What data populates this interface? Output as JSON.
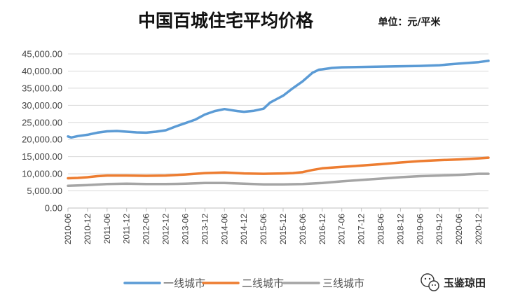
{
  "chart_data": {
    "type": "line",
    "title": "中国百城住宅平均价格",
    "unit_label": "单位：元/平米",
    "xlabel": "",
    "ylabel": "",
    "ylim": [
      0,
      45000
    ],
    "yticks": [
      "0.00",
      "5,000.00",
      "10,000.00",
      "15,000.00",
      "20,000.00",
      "25,000.00",
      "30,000.00",
      "35,000.00",
      "40,000.00",
      "45,000.00"
    ],
    "x_tick_labels": [
      "2010-06",
      "2010-12",
      "2011-06",
      "2011-12",
      "2012-06",
      "2012-12",
      "2013-06",
      "2013-12",
      "2014-06",
      "2014-12",
      "2015-06",
      "2015-12",
      "2016-06",
      "2016-12",
      "2017-06",
      "2017-12",
      "2018-06",
      "2018-12",
      "2019-06",
      "2019-12",
      "2020-06",
      "2020-12"
    ],
    "x_range": [
      "2010-06",
      "2021-03"
    ],
    "grid": "horizontal",
    "legend_position": "bottom",
    "colors": {
      "tier1": "#5B9BD5",
      "tier2": "#ED7D31",
      "tier3": "#A5A5A5"
    },
    "series": [
      {
        "name": "一线城市",
        "points": [
          [
            "2010-06",
            20900
          ],
          [
            "2010-07",
            20600
          ],
          [
            "2010-09",
            21000
          ],
          [
            "2010-12",
            21400
          ],
          [
            "2011-03",
            22000
          ],
          [
            "2011-06",
            22400
          ],
          [
            "2011-09",
            22500
          ],
          [
            "2011-12",
            22300
          ],
          [
            "2012-03",
            22100
          ],
          [
            "2012-06",
            22000
          ],
          [
            "2012-09",
            22300
          ],
          [
            "2012-12",
            22700
          ],
          [
            "2013-03",
            23800
          ],
          [
            "2013-06",
            24800
          ],
          [
            "2013-09",
            25800
          ],
          [
            "2013-12",
            27300
          ],
          [
            "2014-03",
            28300
          ],
          [
            "2014-06",
            28900
          ],
          [
            "2014-08",
            28600
          ],
          [
            "2014-10",
            28300
          ],
          [
            "2014-12",
            28100
          ],
          [
            "2015-03",
            28400
          ],
          [
            "2015-06",
            29000
          ],
          [
            "2015-08",
            30800
          ],
          [
            "2015-10",
            31800
          ],
          [
            "2015-12",
            32800
          ],
          [
            "2016-03",
            35000
          ],
          [
            "2016-06",
            37000
          ],
          [
            "2016-09",
            39500
          ],
          [
            "2016-11",
            40400
          ],
          [
            "2016-12",
            40500
          ],
          [
            "2017-03",
            40900
          ],
          [
            "2017-06",
            41100
          ],
          [
            "2017-12",
            41200
          ],
          [
            "2018-06",
            41300
          ],
          [
            "2018-12",
            41400
          ],
          [
            "2019-06",
            41500
          ],
          [
            "2019-12",
            41700
          ],
          [
            "2020-06",
            42200
          ],
          [
            "2020-12",
            42600
          ],
          [
            "2021-03",
            43000
          ]
        ]
      },
      {
        "name": "二线城市",
        "points": [
          [
            "2010-06",
            8700
          ],
          [
            "2010-09",
            8800
          ],
          [
            "2010-12",
            9000
          ],
          [
            "2011-03",
            9300
          ],
          [
            "2011-06",
            9500
          ],
          [
            "2011-12",
            9500
          ],
          [
            "2012-06",
            9400
          ],
          [
            "2012-12",
            9500
          ],
          [
            "2013-06",
            9800
          ],
          [
            "2013-12",
            10200
          ],
          [
            "2014-06",
            10400
          ],
          [
            "2014-12",
            10100
          ],
          [
            "2015-06",
            10000
          ],
          [
            "2015-12",
            10100
          ],
          [
            "2016-03",
            10200
          ],
          [
            "2016-06",
            10500
          ],
          [
            "2016-09",
            11100
          ],
          [
            "2016-12",
            11600
          ],
          [
            "2017-06",
            12000
          ],
          [
            "2017-12",
            12400
          ],
          [
            "2018-06",
            12800
          ],
          [
            "2018-12",
            13300
          ],
          [
            "2019-06",
            13700
          ],
          [
            "2019-12",
            14000
          ],
          [
            "2020-06",
            14200
          ],
          [
            "2020-12",
            14500
          ],
          [
            "2021-03",
            14700
          ]
        ]
      },
      {
        "name": "三线城市",
        "points": [
          [
            "2010-06",
            6500
          ],
          [
            "2010-12",
            6700
          ],
          [
            "2011-06",
            7000
          ],
          [
            "2011-12",
            7100
          ],
          [
            "2012-06",
            7000
          ],
          [
            "2012-12",
            7000
          ],
          [
            "2013-06",
            7100
          ],
          [
            "2013-12",
            7300
          ],
          [
            "2014-06",
            7300
          ],
          [
            "2014-12",
            7100
          ],
          [
            "2015-06",
            6900
          ],
          [
            "2015-12",
            6900
          ],
          [
            "2016-06",
            7000
          ],
          [
            "2016-12",
            7300
          ],
          [
            "2017-06",
            7800
          ],
          [
            "2017-12",
            8200
          ],
          [
            "2018-06",
            8600
          ],
          [
            "2018-12",
            9000
          ],
          [
            "2019-06",
            9300
          ],
          [
            "2019-12",
            9500
          ],
          [
            "2020-06",
            9700
          ],
          [
            "2020-12",
            10000
          ],
          [
            "2021-03",
            10000
          ]
        ]
      }
    ]
  },
  "watermark": {
    "text": "玉鉴琼田",
    "icon": "wechat-icon"
  }
}
